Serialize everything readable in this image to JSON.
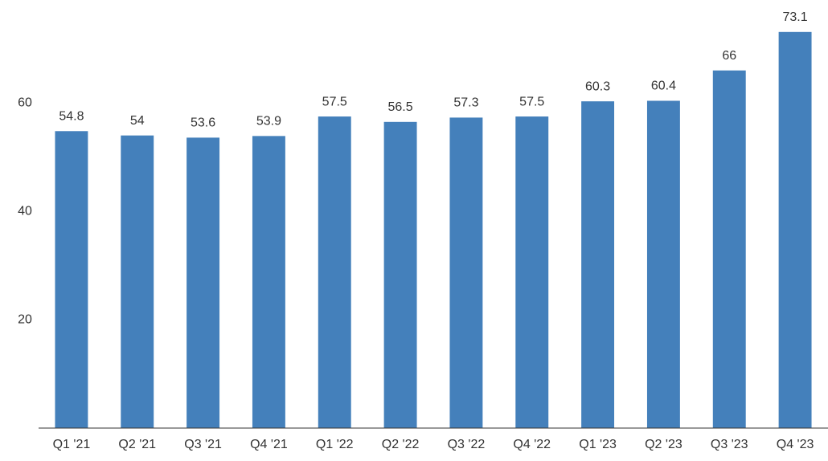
{
  "chart_data": {
    "type": "bar",
    "categories": [
      "Q1 '21",
      "Q2 '21",
      "Q3 '21",
      "Q4 '21",
      "Q1 '22",
      "Q2 '22",
      "Q3 '22",
      "Q4 '22",
      "Q1 '23",
      "Q2 '23",
      "Q3 '23",
      "Q4 '23"
    ],
    "values": [
      54.8,
      54,
      53.6,
      53.9,
      57.5,
      56.5,
      57.3,
      57.5,
      60.3,
      60.4,
      66,
      73.1
    ],
    "color": "#4480bb",
    "ylim": [
      0,
      79
    ],
    "yticks": [
      20,
      40,
      60
    ],
    "grid": false
  }
}
